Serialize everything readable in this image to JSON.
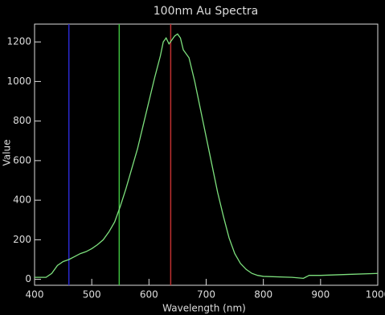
{
  "chart_data": {
    "type": "line",
    "title": "100nm Au Spectra",
    "xlabel": "Wavelength (nm)",
    "ylabel": "Value",
    "x": [
      400,
      420,
      430,
      440,
      450,
      460,
      470,
      480,
      490,
      500,
      510,
      520,
      530,
      540,
      550,
      560,
      570,
      580,
      590,
      600,
      610,
      620,
      625,
      630,
      635,
      640,
      645,
      650,
      655,
      660,
      670,
      680,
      690,
      700,
      710,
      720,
      730,
      740,
      750,
      760,
      770,
      780,
      790,
      800,
      850,
      870,
      880,
      900,
      950,
      1000
    ],
    "values": [
      10,
      10,
      30,
      70,
      90,
      100,
      115,
      130,
      140,
      155,
      175,
      200,
      240,
      290,
      370,
      460,
      560,
      660,
      780,
      900,
      1020,
      1130,
      1200,
      1220,
      1190,
      1210,
      1230,
      1240,
      1220,
      1160,
      1120,
      1000,
      860,
      720,
      580,
      440,
      320,
      210,
      130,
      80,
      50,
      30,
      20,
      15,
      10,
      5,
      20,
      20,
      25,
      30
    ],
    "color": "#7de07d",
    "markers": [
      {
        "x": 460,
        "color": "#2a2ad0"
      },
      {
        "x": 548,
        "color": "#3fbf3f"
      },
      {
        "x": 638,
        "color": "#c03030"
      }
    ],
    "xlim": [
      400,
      1000
    ],
    "ylim": [
      -30,
      1290
    ],
    "xticks": [
      400,
      500,
      600,
      700,
      800,
      900,
      1000
    ],
    "yticks": [
      0,
      200,
      400,
      600,
      800,
      1000,
      1200
    ]
  }
}
